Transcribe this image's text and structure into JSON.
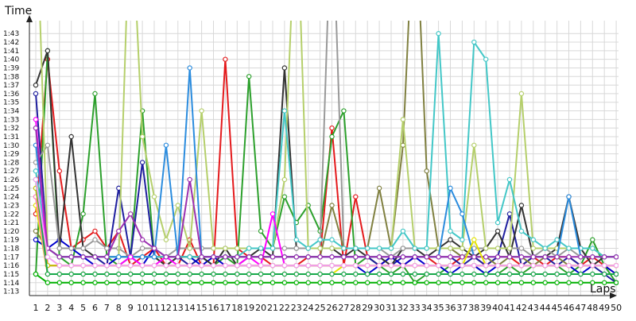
{
  "chart_data": {
    "type": "line",
    "xlabel": "Laps",
    "ylabel": "Time",
    "x": [
      1,
      2,
      3,
      4,
      5,
      6,
      7,
      8,
      9,
      10,
      11,
      12,
      13,
      14,
      15,
      16,
      17,
      18,
      19,
      20,
      21,
      22,
      23,
      24,
      25,
      26,
      27,
      28,
      29,
      30,
      31,
      32,
      33,
      34,
      35,
      36,
      37,
      38,
      39,
      40,
      41,
      42,
      43,
      44,
      45,
      46,
      47,
      48,
      49,
      50
    ],
    "y_ticks": [
      "1:13",
      "1:14",
      "1:15",
      "1:16",
      "1:17",
      "1:18",
      "1:19",
      "1:20",
      "1:21",
      "1:22",
      "1:23",
      "1:24",
      "1:25",
      "1:26",
      "1:27",
      "1:28",
      "1:29",
      "1:30",
      "1:31",
      "1:32",
      "1:33",
      "1:34",
      "1:35",
      "1:36",
      "1:37",
      "1:38",
      "1:39",
      "1:40",
      "1:41",
      "1:42",
      "1:43"
    ],
    "ylim_seconds": [
      72.5,
      104.5
    ],
    "grid": true,
    "marker": "circle",
    "series": [
      {
        "color": "#e41a1c",
        "values": [
          82,
          100,
          87,
          78,
          79,
          80,
          78,
          80,
          76,
          77,
          78,
          76,
          76,
          79,
          76,
          76,
          100,
          78,
          77,
          77,
          76,
          76,
          76,
          77,
          77,
          92,
          76,
          84,
          77,
          76,
          77,
          76,
          77,
          77,
          76,
          76,
          77,
          77,
          76,
          77,
          77,
          76,
          77,
          76,
          77,
          77,
          76,
          77,
          76,
          75
        ]
      },
      {
        "color": "#2ca02c",
        "values": [
          75,
          101,
          77,
          76,
          82,
          96,
          77,
          76,
          77,
          94,
          77,
          76,
          77,
          77,
          77,
          76,
          77,
          76,
          98,
          80,
          78,
          84,
          81,
          83,
          80,
          91,
          94,
          76,
          77,
          76,
          75,
          76,
          74,
          75,
          75,
          76,
          76,
          76,
          75,
          75,
          76,
          75,
          76,
          76,
          76,
          75,
          76,
          79,
          76,
          74
        ]
      },
      {
        "color": "#1f1f9f",
        "values": [
          96,
          78,
          77,
          77,
          77,
          77,
          76,
          85,
          77,
          88,
          77,
          77,
          77,
          76,
          77,
          77,
          77,
          77,
          77,
          77,
          77,
          77,
          77,
          77,
          77,
          77,
          77,
          77,
          77,
          76,
          76,
          77,
          77,
          77,
          77,
          77,
          76,
          77,
          76,
          77,
          82,
          76,
          77,
          77,
          76,
          77,
          76,
          76,
          75,
          74
        ]
      },
      {
        "color": "#0000cc",
        "values": [
          79,
          78,
          79,
          78,
          77,
          76,
          76,
          77,
          77,
          76,
          78,
          77,
          77,
          77,
          76,
          77,
          76,
          76,
          76,
          76,
          76,
          76,
          76,
          76,
          76,
          76,
          76,
          76,
          75,
          76,
          77,
          76,
          77,
          76,
          76,
          75,
          76,
          76,
          75,
          76,
          76,
          76,
          76,
          76,
          76,
          76,
          75,
          76,
          76,
          75
        ]
      },
      {
        "color": "#333333",
        "values": [
          97,
          101,
          78,
          91,
          78,
          77,
          77,
          77,
          77,
          77,
          77,
          76,
          77,
          77,
          77,
          76,
          78,
          76,
          77,
          78,
          77,
          99,
          78,
          78,
          78,
          78,
          77,
          78,
          77,
          77,
          76,
          78,
          78,
          77,
          78,
          79,
          78,
          77,
          78,
          80,
          77,
          83,
          77,
          77,
          78,
          84,
          78,
          76,
          77,
          77
        ]
      },
      {
        "color": "#999999",
        "values": [
          88,
          90,
          78,
          78,
          78,
          79,
          78,
          78,
          77,
          78,
          78,
          77,
          78,
          78,
          78,
          78,
          78,
          78,
          78,
          78,
          78,
          78,
          78,
          78,
          78,
          120,
          78,
          78,
          78,
          78,
          77,
          78,
          78,
          78,
          78,
          78,
          77,
          78,
          78,
          78,
          78,
          78,
          77,
          78,
          77,
          78,
          77,
          77,
          77,
          77
        ]
      },
      {
        "color": "#808040",
        "values": [
          80,
          78,
          77,
          77,
          77,
          77,
          77,
          77,
          77,
          77,
          77,
          77,
          77,
          77,
          77,
          77,
          77,
          77,
          77,
          77,
          77,
          77,
          77,
          77,
          77,
          83,
          78,
          78,
          78,
          85,
          78,
          90,
          120,
          87,
          78,
          78,
          77,
          77,
          77,
          76,
          77,
          77,
          76,
          77,
          77,
          76,
          76,
          76,
          76,
          76
        ]
      },
      {
        "color": "#b5cf6b",
        "values": [
          120,
          78,
          77,
          77,
          77,
          77,
          77,
          77,
          120,
          91,
          84,
          79,
          83,
          78,
          94,
          78,
          78,
          78,
          78,
          78,
          78,
          86,
          120,
          78,
          78,
          78,
          78,
          78,
          78,
          78,
          78,
          93,
          78,
          78,
          78,
          78,
          78,
          90,
          78,
          78,
          78,
          96,
          78,
          78,
          78,
          78,
          78,
          78,
          77,
          77
        ]
      },
      {
        "color": "#43c7c7",
        "values": [
          87,
          78,
          77,
          77,
          77,
          77,
          77,
          77,
          77,
          77,
          77,
          77,
          77,
          77,
          77,
          77,
          77,
          77,
          78,
          78,
          78,
          94,
          79,
          78,
          79,
          79,
          78,
          78,
          78,
          78,
          78,
          80,
          78,
          78,
          103,
          80,
          79,
          102,
          100,
          81,
          86,
          80,
          79,
          78,
          79,
          78,
          78,
          78,
          77,
          77
        ]
      },
      {
        "color": "#2b8cde",
        "values": [
          90,
          78,
          77,
          77,
          77,
          77,
          77,
          77,
          77,
          77,
          77,
          90,
          77,
          99,
          77,
          77,
          77,
          77,
          77,
          77,
          77,
          77,
          77,
          77,
          77,
          77,
          77,
          77,
          77,
          77,
          77,
          77,
          77,
          77,
          77,
          85,
          82,
          77,
          77,
          77,
          77,
          77,
          77,
          77,
          77,
          84,
          77,
          77,
          77,
          77
        ]
      },
      {
        "color": "#ff00ff",
        "values": [
          93,
          76,
          76,
          76,
          76,
          76,
          76,
          76,
          77,
          76,
          76,
          77,
          76,
          76,
          76,
          76,
          76,
          76,
          77,
          76,
          82,
          76,
          76,
          76,
          76,
          76,
          76,
          76,
          76,
          76,
          76,
          76,
          76,
          76,
          76,
          76,
          76,
          76,
          76,
          76,
          76,
          76,
          76,
          76,
          76,
          76,
          76,
          76,
          76,
          76
        ]
      },
      {
        "color": "#9b30b0",
        "values": [
          92,
          78,
          77,
          77,
          77,
          77,
          77,
          80,
          82,
          79,
          78,
          77,
          77,
          86,
          77,
          77,
          77,
          77,
          77,
          77,
          77,
          77,
          77,
          77,
          77,
          77,
          77,
          77,
          77,
          77,
          77,
          77,
          77,
          77,
          77,
          77,
          77,
          77,
          77,
          77,
          77,
          77,
          77,
          77,
          77,
          77,
          77,
          77,
          77,
          77
        ]
      },
      {
        "color": "#e5e500",
        "values": [
          83,
          75,
          75,
          75,
          75,
          75,
          75,
          75,
          75,
          75,
          75,
          75,
          75,
          75,
          75,
          75,
          75,
          75,
          75,
          75,
          75,
          75,
          75,
          75,
          75,
          75,
          76,
          76,
          76,
          76,
          76,
          76,
          76,
          76,
          76,
          76,
          76,
          79,
          76,
          76,
          76,
          76,
          76,
          76,
          76,
          76,
          76,
          76,
          76,
          76
        ]
      },
      {
        "color": "#ffa07a",
        "values": [
          84,
          76,
          76,
          76,
          76,
          76,
          76,
          76,
          76,
          76,
          76,
          76,
          76,
          76,
          76,
          76,
          76,
          76,
          76,
          76,
          76,
          76,
          76,
          76,
          76,
          76,
          76,
          76,
          76,
          76,
          76,
          76,
          76,
          76,
          76,
          76,
          76,
          76,
          76,
          76,
          76,
          76,
          76,
          76,
          76,
          76,
          76,
          76,
          76,
          76
        ]
      },
      {
        "color": "#ff80c0",
        "values": [
          84,
          75,
          75,
          75,
          75,
          75,
          75,
          75,
          75,
          75,
          75,
          75,
          75,
          75,
          75,
          75,
          75,
          75,
          75,
          75,
          75,
          75,
          75,
          75,
          75,
          75,
          75,
          75,
          75,
          75,
          75,
          75,
          75,
          75,
          75,
          75,
          75,
          75,
          75,
          75,
          75,
          75,
          75,
          75,
          75,
          75,
          75,
          75,
          75,
          75
        ]
      },
      {
        "color": "#c0c000",
        "values": [
          85,
          76,
          76,
          76,
          76,
          76,
          76,
          76,
          76,
          76,
          76,
          76,
          76,
          76,
          76,
          76,
          76,
          76,
          76,
          76,
          76,
          76,
          76,
          76,
          76,
          76,
          76,
          76,
          76,
          76,
          76,
          76,
          76,
          76,
          76,
          76,
          76,
          76,
          76,
          76,
          76,
          76,
          76,
          76,
          76,
          76,
          76,
          76,
          76,
          76
        ]
      },
      {
        "color": "#17a84a",
        "values": [
          86,
          75,
          75,
          75,
          75,
          75,
          75,
          75,
          75,
          75,
          75,
          75,
          75,
          75,
          75,
          75,
          75,
          75,
          75,
          75,
          75,
          75,
          75,
          75,
          75,
          75,
          75,
          75,
          75,
          75,
          75,
          75,
          75,
          75,
          75,
          75,
          75,
          75,
          75,
          75,
          75,
          75,
          75,
          75,
          75,
          75,
          75,
          75,
          75,
          75
        ]
      },
      {
        "color": "#f4a0f4",
        "values": [
          86,
          77,
          76,
          76,
          76,
          76,
          76,
          76,
          76,
          76,
          76,
          76,
          76,
          76,
          76,
          76,
          76,
          76,
          76,
          76,
          76,
          76,
          76,
          76,
          76,
          76,
          76,
          76,
          76,
          76,
          76,
          76,
          76,
          76,
          76,
          76,
          76,
          76,
          76,
          76,
          76,
          76,
          76,
          76,
          76,
          76,
          76,
          76,
          76,
          76
        ]
      },
      {
        "color": "#00b000",
        "values": [
          75,
          74,
          74,
          74,
          74,
          74,
          74,
          74,
          74,
          74,
          74,
          74,
          74,
          74,
          74,
          74,
          74,
          74,
          74,
          74,
          74,
          74,
          74,
          74,
          74,
          74,
          74,
          74,
          74,
          74,
          74,
          74,
          74,
          74,
          74,
          74,
          74,
          74,
          74,
          74,
          74,
          74,
          74,
          74,
          74,
          74,
          74,
          74,
          74,
          74
        ]
      }
    ]
  }
}
